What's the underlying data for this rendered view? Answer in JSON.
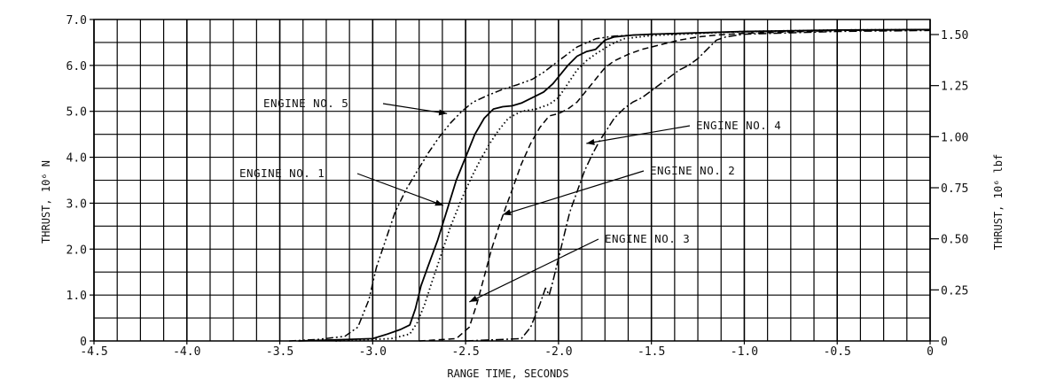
{
  "chart_data": {
    "type": "line",
    "title": "",
    "xlabel": "RANGE TIME, SECONDS",
    "ylabel": "THRUST, 10⁶ N",
    "y2label": "THRUST, 10⁶ lbf",
    "xlim": [
      -4.5,
      0
    ],
    "ylim": [
      0,
      7.0
    ],
    "y2lim": [
      0,
      1.5737
    ],
    "grid": true,
    "x_ticks": [
      -4.5,
      -4.0,
      -3.5,
      -3.0,
      -2.5,
      -2.0,
      -1.5,
      -1.0,
      -0.5,
      0
    ],
    "x_tick_labels": [
      "-4.5",
      "-4.0",
      "-3.5",
      "-3.0",
      "-2.5",
      "-2.0",
      "-1.5",
      "-1.0",
      "-0.5",
      "0"
    ],
    "y_ticks": [
      0,
      1.0,
      2.0,
      3.0,
      4.0,
      5.0,
      6.0,
      7.0
    ],
    "y_tick_labels": [
      "0",
      "1.0",
      "2.0",
      "3.0",
      "4.0",
      "5.0",
      "6.0",
      "7.0"
    ],
    "y2_ticks": [
      0,
      0.25,
      0.5,
      0.75,
      1.0,
      1.25,
      1.5
    ],
    "y2_tick_labels": [
      "0",
      "0.25",
      "0.50",
      "0.75",
      "1.00",
      "1.25",
      "1.50"
    ],
    "series": [
      {
        "name": "ENGINE NO. 5",
        "dash": "dash-dot-dot",
        "x": [
          -3.45,
          -3.3,
          -3.15,
          -3.08,
          -3.02,
          -2.98,
          -2.93,
          -2.88,
          -2.82,
          -2.76,
          -2.7,
          -2.64,
          -2.58,
          -2.52,
          -2.46,
          -2.38,
          -2.3,
          -2.22,
          -2.14,
          -2.08,
          -2.0,
          -1.9,
          -1.8,
          -1.7,
          -1.5,
          -1.0,
          -0.5,
          0
        ],
        "y": [
          0,
          0.03,
          0.1,
          0.3,
          0.9,
          1.6,
          2.2,
          2.8,
          3.3,
          3.7,
          4.1,
          4.45,
          4.75,
          5.0,
          5.2,
          5.35,
          5.48,
          5.58,
          5.7,
          5.85,
          6.1,
          6.4,
          6.58,
          6.64,
          6.68,
          6.73,
          6.76,
          6.78
        ]
      },
      {
        "name": "ENGINE NO. 1",
        "dash": "solid",
        "x": [
          -3.4,
          -3.0,
          -2.92,
          -2.85,
          -2.8,
          -2.77,
          -2.74,
          -2.7,
          -2.65,
          -2.6,
          -2.55,
          -2.5,
          -2.45,
          -2.4,
          -2.35,
          -2.3,
          -2.25,
          -2.2,
          -2.14,
          -2.08,
          -2.03,
          -2.0,
          -1.95,
          -1.9,
          -1.85,
          -1.8,
          -1.75,
          -1.7,
          -1.6,
          -1.5,
          -1.0,
          -0.5,
          0
        ],
        "y": [
          0,
          0.05,
          0.15,
          0.25,
          0.35,
          0.7,
          1.2,
          1.65,
          2.2,
          2.85,
          3.5,
          4.0,
          4.5,
          4.85,
          5.05,
          5.1,
          5.12,
          5.18,
          5.3,
          5.42,
          5.6,
          5.75,
          6.0,
          6.2,
          6.3,
          6.35,
          6.55,
          6.62,
          6.66,
          6.68,
          6.74,
          6.77,
          6.78
        ]
      },
      {
        "name": "",
        "dash": "dotted",
        "x": [
          -3.2,
          -2.9,
          -2.8,
          -2.76,
          -2.72,
          -2.68,
          -2.63,
          -2.58,
          -2.52,
          -2.47,
          -2.42,
          -2.37,
          -2.32,
          -2.27,
          -2.2,
          -2.12,
          -2.05,
          -2.0,
          -1.95,
          -1.9,
          -1.85,
          -1.8,
          -1.72,
          -1.65,
          -1.5,
          -1.0,
          -0.5,
          0
        ],
        "y": [
          0,
          0.05,
          0.15,
          0.4,
          0.8,
          1.3,
          1.9,
          2.5,
          3.1,
          3.55,
          3.95,
          4.3,
          4.6,
          4.85,
          5.0,
          5.05,
          5.15,
          5.3,
          5.6,
          5.9,
          6.1,
          6.25,
          6.45,
          6.58,
          6.65,
          6.74,
          6.77,
          6.78
        ]
      },
      {
        "name": "ENGINE NO. 2",
        "dash": "dashed",
        "x": [
          -2.75,
          -2.55,
          -2.48,
          -2.44,
          -2.4,
          -2.36,
          -2.32,
          -2.28,
          -2.24,
          -2.2,
          -2.15,
          -2.1,
          -2.05,
          -2.0,
          -1.95,
          -1.9,
          -1.85,
          -1.8,
          -1.75,
          -1.7,
          -1.62,
          -1.55,
          -1.45,
          -1.35,
          -1.25,
          -1.15,
          -1.0,
          -0.5,
          0
        ],
        "y": [
          0,
          0.05,
          0.3,
          0.8,
          1.4,
          2.0,
          2.5,
          2.95,
          3.4,
          3.85,
          4.3,
          4.65,
          4.9,
          4.95,
          5.05,
          5.2,
          5.45,
          5.7,
          5.95,
          6.1,
          6.25,
          6.35,
          6.45,
          6.55,
          6.62,
          6.66,
          6.7,
          6.76,
          6.78
        ]
      },
      {
        "name": "ENGINE NO. 3",
        "dash": "dash-dot",
        "x": [
          -2.5,
          -2.2,
          -2.15,
          -2.1,
          -2.07,
          -2.05,
          -2.03,
          -2.0,
          -1.97,
          -1.94,
          -1.9,
          -1.86,
          -1.82,
          -1.78,
          -1.74,
          -1.7,
          -1.65,
          -1.6,
          -1.55,
          -1.5,
          -1.45,
          -1.4,
          -1.35,
          -1.3,
          -1.25,
          -1.2,
          -1.15,
          -1.1,
          -1.0,
          -0.5,
          0
        ],
        "y": [
          0,
          0.05,
          0.3,
          0.8,
          1.15,
          1.0,
          1.3,
          1.8,
          2.3,
          2.8,
          3.25,
          3.7,
          4.05,
          4.35,
          4.6,
          4.85,
          5.05,
          5.2,
          5.3,
          5.45,
          5.6,
          5.75,
          5.9,
          6.0,
          6.15,
          6.35,
          6.55,
          6.62,
          6.68,
          6.74,
          6.76
        ]
      }
    ],
    "annotations": [
      {
        "text": "ENGINE NO. 5",
        "x": -2.6,
        "y": 4.95
      },
      {
        "text": "ENGINE NO. 1",
        "x": -2.62,
        "y": 2.95
      },
      {
        "text": "ENGINE NO. 4",
        "x": -1.85,
        "y": 4.3
      },
      {
        "text": "ENGINE NO. 2",
        "x": -2.3,
        "y": 2.75
      },
      {
        "text": "ENGINE NO. 3",
        "x": -2.48,
        "y": 0.85
      }
    ]
  }
}
